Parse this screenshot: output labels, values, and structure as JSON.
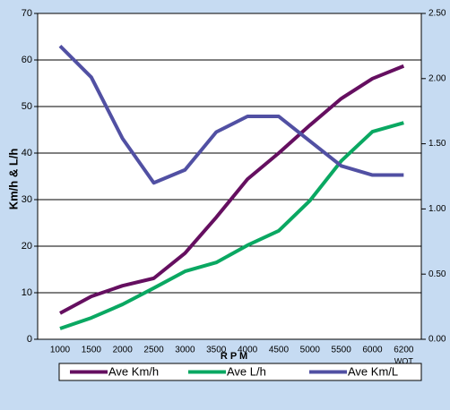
{
  "chart_data": {
    "type": "line",
    "x_label": "R P M",
    "y_label": "Km/h & L/h",
    "categories": [
      "1000",
      "1500",
      "2000",
      "2500",
      "3000",
      "3500",
      "4000",
      "4500",
      "5000",
      "5500",
      "6000",
      "6200"
    ],
    "annotation": "WOT",
    "ylim": [
      0,
      70
    ],
    "yticks": [
      0,
      10,
      20,
      30,
      40,
      50,
      60,
      70
    ],
    "y2lim": [
      0,
      2.5
    ],
    "y2ticks": [
      {
        "value": 0,
        "label": "0.00"
      },
      {
        "value": 0.5,
        "label": "0.50"
      },
      {
        "value": 1,
        "label": "1.00"
      },
      {
        "value": 1.5,
        "label": "1.50"
      },
      {
        "value": 2,
        "label": "2.00"
      },
      {
        "value": 2.5,
        "label": "2.50"
      }
    ],
    "grid": true,
    "legend": "bottom",
    "series": [
      {
        "name": "Ave Km/h",
        "color": "#650f60",
        "values": [
          5.6,
          9.2,
          11.5,
          13.1,
          18.5,
          26.2,
          34.4,
          40.0,
          46.0,
          51.7,
          56.0,
          58.7
        ]
      },
      {
        "name": "Ave L/h",
        "color": "#0aa862",
        "values": [
          2.3,
          4.6,
          7.5,
          11.0,
          14.6,
          16.5,
          20.2,
          23.3,
          29.8,
          38.3,
          44.6,
          46.5
        ]
      },
      {
        "name": "Ave Km/L",
        "color": "#5150a3",
        "axis": "y2",
        "values": [
          2.25,
          2.01,
          1.54,
          1.2,
          1.3,
          1.59,
          1.71,
          1.71,
          1.52,
          1.33,
          1.26,
          1.26
        ]
      }
    ]
  }
}
